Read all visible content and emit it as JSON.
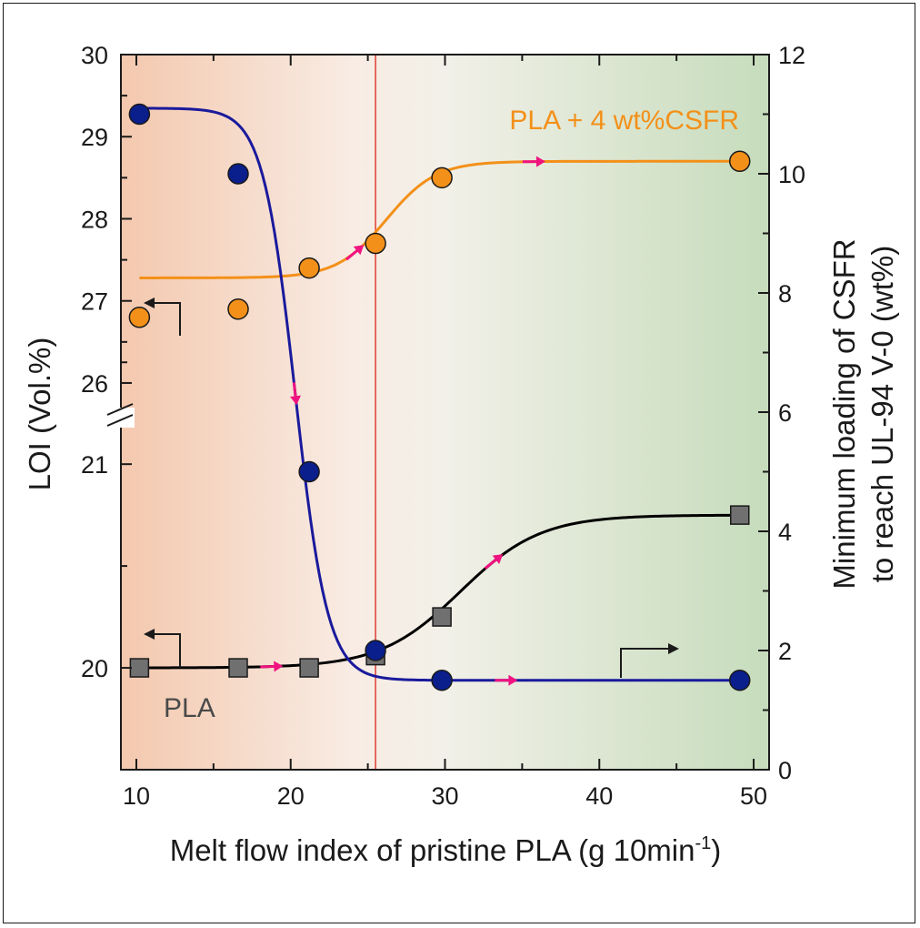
{
  "chart_data": {
    "type": "scatter",
    "xlabel": "Melt flow index of pristine PLA (g 10min",
    "xlabel_sup": "-1",
    "xlabel_end": ")",
    "xlim": [
      9,
      51
    ],
    "x_ticks": [
      "10",
      "20",
      "30",
      "40",
      "50"
    ],
    "left_axis": {
      "label": "LOI (Vol.%)",
      "broken": true,
      "upper_segment": {
        "range": [
          25.8,
          30
        ],
        "ticks": [
          "26",
          "27",
          "28",
          "29",
          "30"
        ]
      },
      "lower_segment": {
        "range": [
          19.5,
          21.3
        ],
        "ticks": [
          "20",
          "21"
        ]
      }
    },
    "right_axis": {
      "label_line1": "Minimum loading of CSFR",
      "label_line2": "to reach UL-94 V-0 (wt%)",
      "range": [
        0,
        12
      ],
      "ticks": [
        "0",
        "2",
        "4",
        "6",
        "8",
        "10",
        "12"
      ]
    },
    "divider_x": 25.5,
    "background": {
      "left_color": "#f4c8ae",
      "middle_color": "#f2f0e8",
      "right_color": "#c6dcbc"
    },
    "series": [
      {
        "name": "PLA + 4 wt%CSFR",
        "axis": "left",
        "color": "#f39019",
        "marker": "circle",
        "x": [
          10.2,
          16.6,
          21.2,
          25.5,
          29.8,
          49.1
        ],
        "y": [
          26.8,
          26.9,
          27.4,
          27.7,
          28.5,
          28.7
        ]
      },
      {
        "name": "PLA",
        "axis": "left",
        "color": "#000000",
        "marker_color": "#707070",
        "marker": "square",
        "x": [
          10.2,
          16.6,
          21.2,
          25.5,
          29.8,
          49.1
        ],
        "y": [
          20.0,
          20.0,
          20.0,
          20.06,
          20.25,
          20.75
        ]
      },
      {
        "axis": "right",
        "color": "#1a1a9c",
        "marker_color": "#0a1e8c",
        "marker": "circle",
        "x": [
          10.2,
          16.6,
          21.2,
          25.5,
          29.8,
          49.1
        ],
        "y": [
          11.0,
          10.0,
          5.0,
          2.0,
          1.5,
          1.5
        ]
      }
    ],
    "arrow_color": "#f0127f"
  }
}
